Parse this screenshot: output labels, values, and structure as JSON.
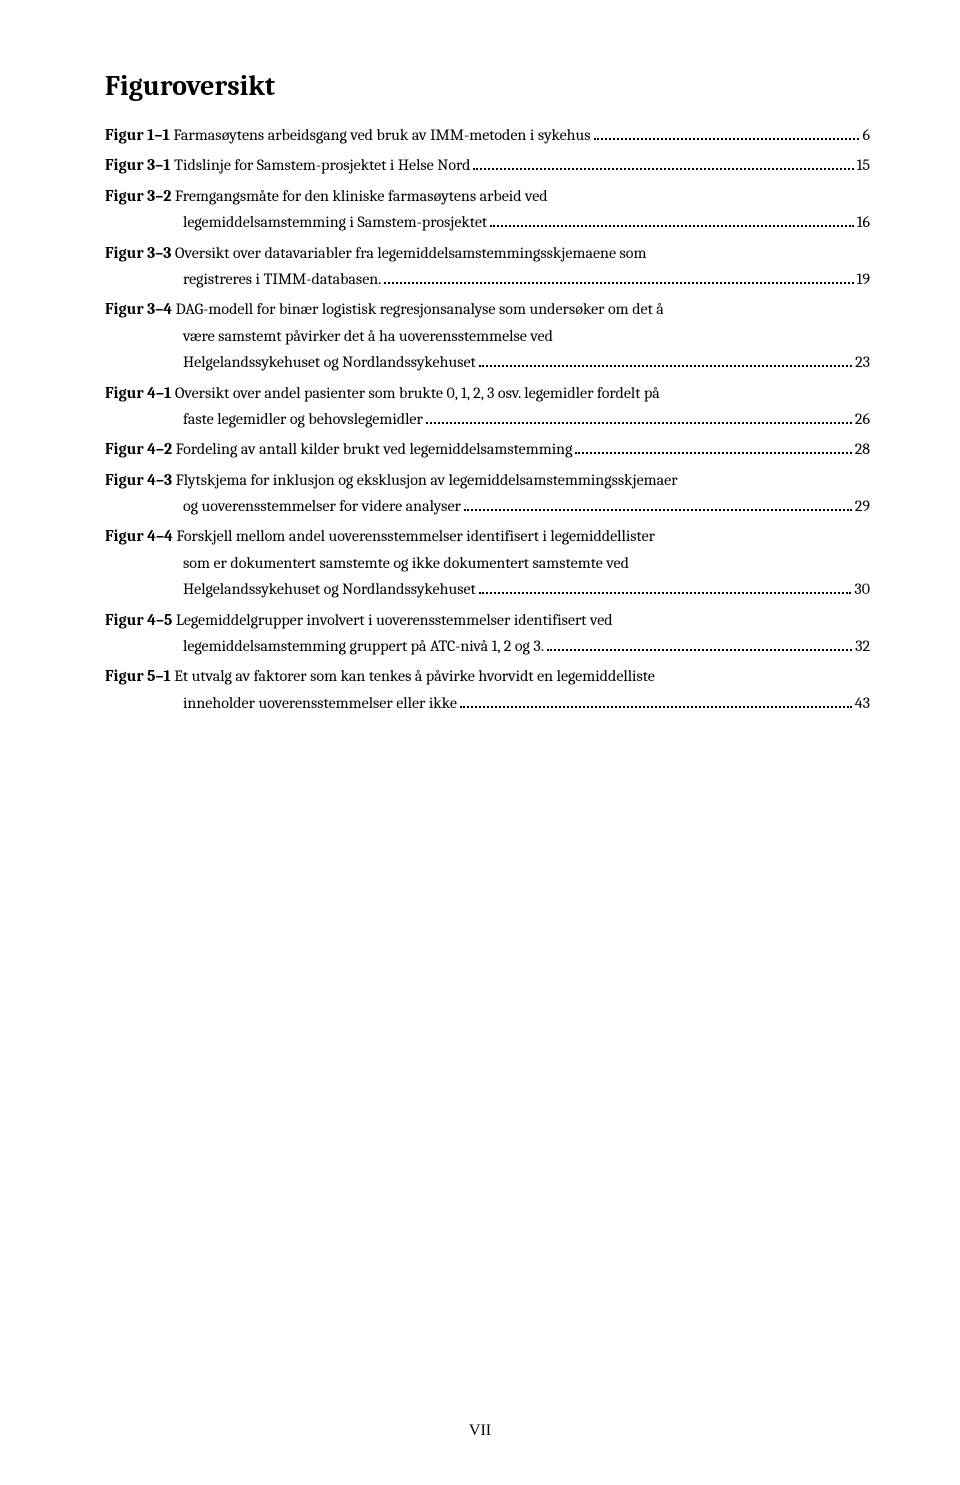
{
  "title": "Figuroversikt",
  "entries": [
    {
      "label": "Figur 1–1",
      "lines": [
        "Farmasøytens arbeidsgang ved bruk av IMM-metoden i sykehus"
      ],
      "page": "6"
    },
    {
      "label": "Figur 3–1",
      "lines": [
        "Tidslinje for Samstem-prosjektet i Helse Nord"
      ],
      "page": "15"
    },
    {
      "label": "Figur 3–2",
      "lines": [
        "Fremgangsmåte for den kliniske farmasøytens arbeid ved",
        "legemiddelsamstemming i Samstem-prosjektet"
      ],
      "page": "16"
    },
    {
      "label": "Figur 3–3",
      "lines": [
        "Oversikt over datavariabler fra legemiddelsamstemmingsskjemaene som",
        "registreres i TIMM-databasen."
      ],
      "page": "19"
    },
    {
      "label": "Figur 3–4",
      "lines": [
        "DAG-modell for binær logistisk regresjonsanalyse som undersøker om det å",
        "være samstemt påvirker det å ha uoverensstemmelse ved",
        "Helgelandssykehuset og Nordlandssykehuset"
      ],
      "page": "23"
    },
    {
      "label": "Figur 4–1",
      "lines": [
        "Oversikt over andel pasienter som brukte 0, 1, 2, 3 osv. legemidler fordelt på",
        "faste legemidler og behovslegemidler"
      ],
      "page": "26"
    },
    {
      "label": "Figur 4–2",
      "lines": [
        "Fordeling av antall kilder brukt ved legemiddelsamstemming"
      ],
      "page": "28"
    },
    {
      "label": "Figur 4–3",
      "lines": [
        "Flytskjema for inklusjon og eksklusjon av legemiddelsamstemmingsskjemaer",
        "og uoverensstemmelser for videre analyser"
      ],
      "page": "29"
    },
    {
      "label": "Figur 4–4",
      "lines": [
        "Forskjell mellom andel uoverensstemmelser identifisert i legemiddellister",
        "som er dokumentert samstemte og ikke dokumentert samstemte ved",
        "Helgelandssykehuset og Nordlandssykehuset"
      ],
      "page": "30"
    },
    {
      "label": "Figur 4–5",
      "lines": [
        "Legemiddelgrupper involvert i uoverensstemmelser identifisert ved",
        "legemiddelsamstemming gruppert på  ATC-nivå 1, 2 og 3. "
      ],
      "page": "32"
    },
    {
      "label": "Figur 5–1",
      "lines": [
        "Et utvalg av faktorer som kan tenkes å påvirke hvorvidt en legemiddelliste",
        "inneholder uoverensstemmelser eller ikke"
      ],
      "page": "43"
    }
  ],
  "footer": "VII"
}
